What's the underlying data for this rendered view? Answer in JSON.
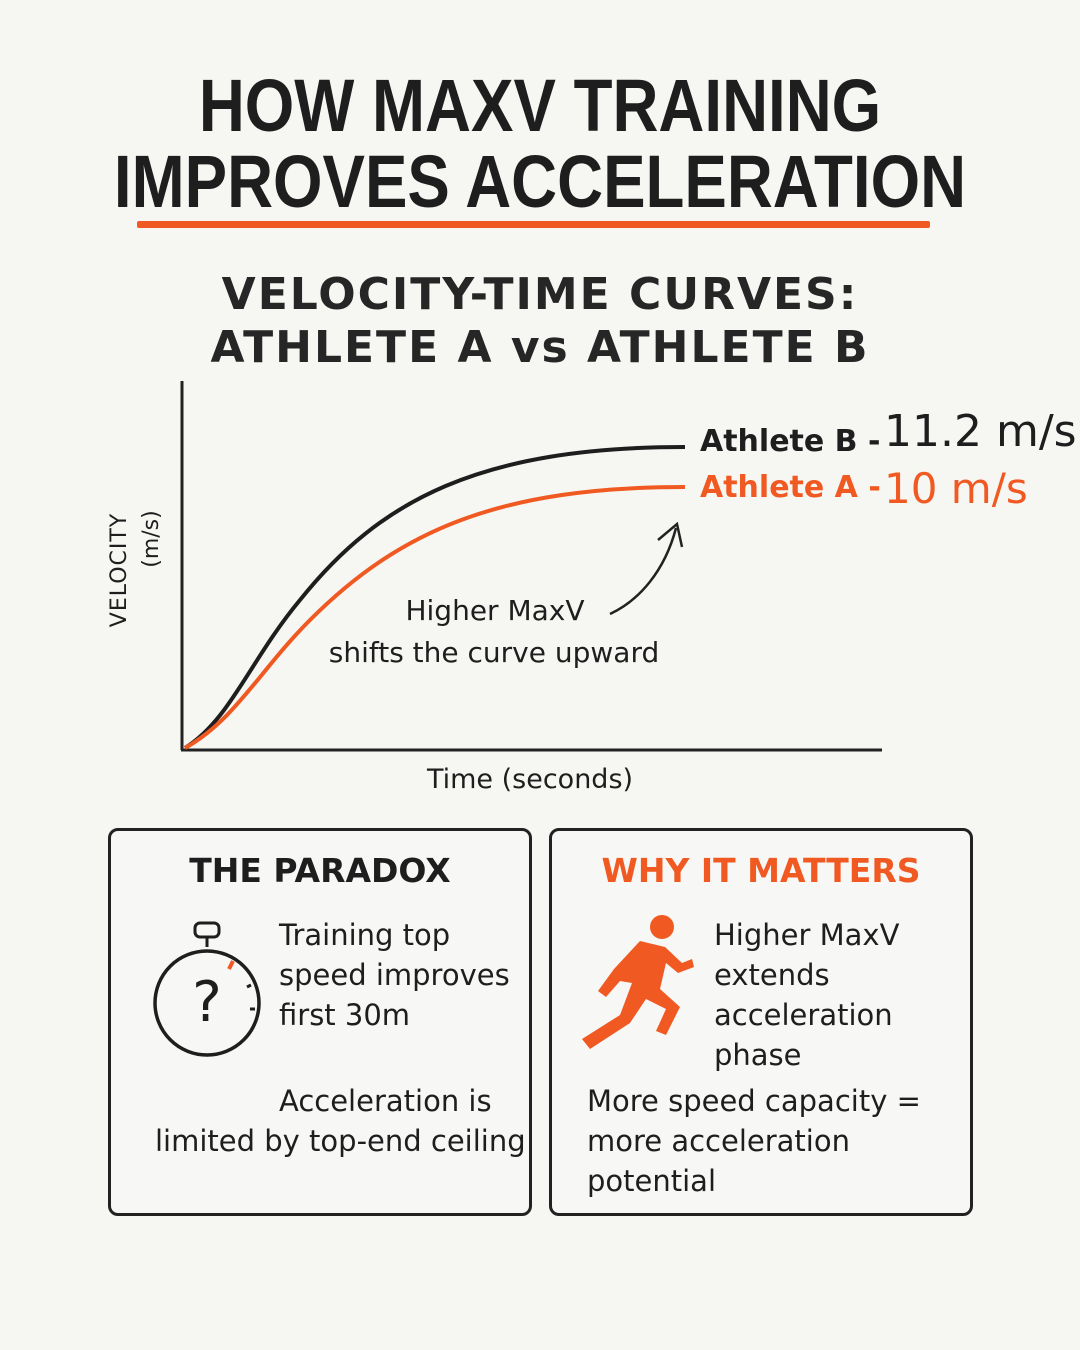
{
  "title": {
    "line1": "HOW MAXV TRAINING",
    "line2": "IMPROVES ACCELERATION"
  },
  "subtitle": {
    "line1": "VELOCITY-TIME CURVES:",
    "line2": "ATHLETE A vs ATHLETE B"
  },
  "chart": {
    "ylabel_line1": "VELOCITY",
    "ylabel_line2": "(m/s)",
    "xlabel": "Time (seconds)",
    "athlete_b_label": "Athlete B -",
    "athlete_b_value": "11.2 m/s",
    "athlete_a_label": "Athlete A -",
    "athlete_a_value": "10 m/s",
    "annotation_line1": "Higher MaxV",
    "annotation_line2": "shifts the curve upward",
    "colors": {
      "athlete_a": "#f05a22",
      "athlete_b": "#1e1e1e"
    }
  },
  "paradox": {
    "title": "THE PARADOX",
    "icon": "stopwatch-question-icon",
    "text": [
      "Training top",
      "speed improves",
      "first 30m"
    ],
    "footer_line1": "Acceleration is",
    "footer_line2": "limited by top-end ceiling"
  },
  "why": {
    "title": "WHY IT MATTERS",
    "icon": "sprinter-icon",
    "text": [
      "Higher MaxV",
      "extends",
      "acceleration",
      "phase"
    ],
    "footer": [
      "More speed capacity =",
      "more acceleration",
      "potential"
    ]
  },
  "accent_color": "#f05a22"
}
